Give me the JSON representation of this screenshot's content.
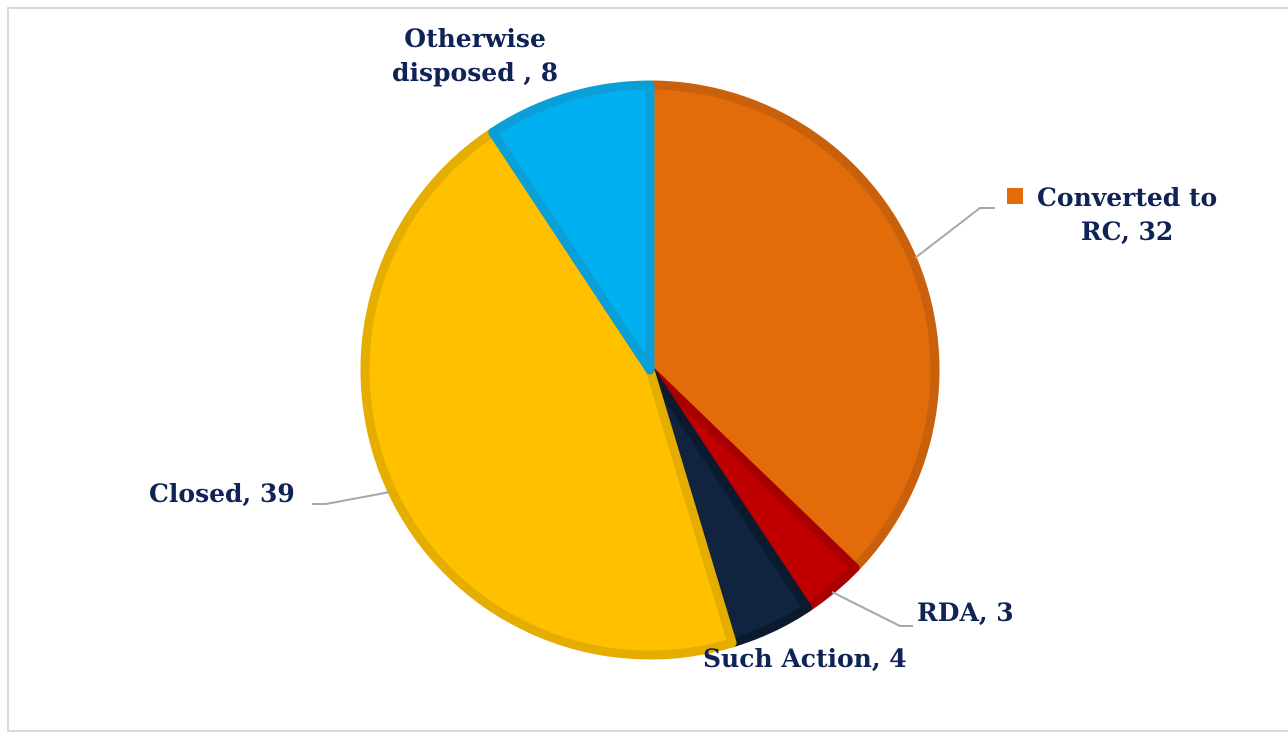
{
  "chart_data": {
    "type": "pie",
    "title": "",
    "start_angle_deg": 0,
    "direction": "clockwise",
    "slices": [
      {
        "label": "Converted to RC",
        "value": 32,
        "color": "#e36c0a",
        "edge": "#c9600c",
        "text": "Converted to RC, 32",
        "line1": "Converted to",
        "line2": "RC, 32"
      },
      {
        "label": "RDA",
        "value": 3,
        "color": "#c00000",
        "edge": "#a80000",
        "text": "RDA, 3"
      },
      {
        "label": "Such Action",
        "value": 4,
        "color": "#10233f",
        "edge": "#0c1a30",
        "text": "Such Action, 4"
      },
      {
        "label": "Closed",
        "value": 39,
        "color": "#ffc000",
        "edge": "#e5ad00",
        "text": "Closed, 39"
      },
      {
        "label": "Otherwise disposed ",
        "value": 8,
        "color": "#00b0f0",
        "edge": "#0a9fd6",
        "text": "Otherwise disposed , 8",
        "line1": "Otherwise",
        "line2": "disposed , 8"
      }
    ],
    "label_color": "#0f2356",
    "leader_color": "#a6a6a6"
  }
}
